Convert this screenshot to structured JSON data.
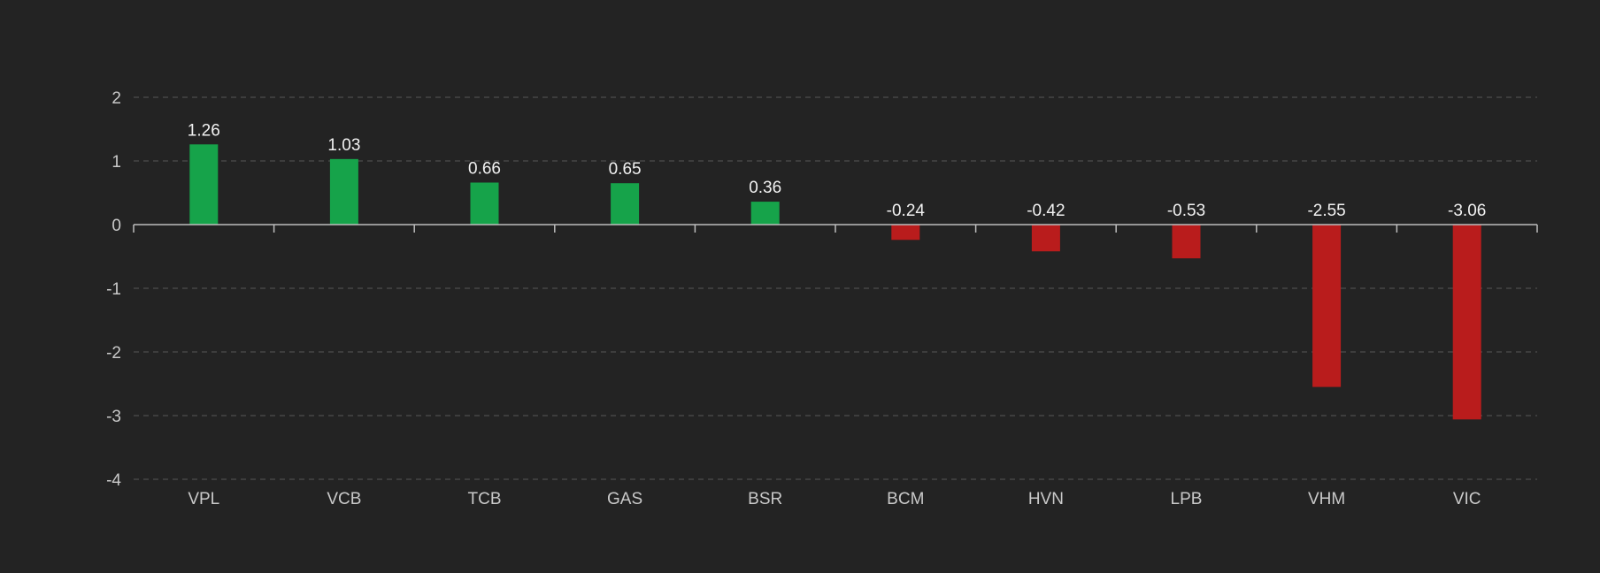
{
  "chart_data": {
    "type": "bar",
    "title": "",
    "xlabel": "",
    "ylabel": "",
    "categories": [
      "VPL",
      "VCB",
      "TCB",
      "GAS",
      "BSR",
      "BCM",
      "HVN",
      "LPB",
      "VHM",
      "VIC"
    ],
    "values": [
      1.26,
      1.03,
      0.66,
      0.65,
      0.36,
      -0.24,
      -0.42,
      -0.53,
      -2.55,
      -3.06
    ],
    "labels": [
      "1.26",
      "1.03",
      "0.66",
      "0.65",
      "0.36",
      "-0.24",
      "-0.42",
      "-0.53",
      "-2.55",
      "-3.06"
    ],
    "ylim": [
      -4,
      2
    ],
    "yticks": [
      2,
      1,
      0,
      -1,
      -2,
      -3,
      -4
    ],
    "grid": true,
    "legend": "none",
    "colors": {
      "positive": "#16a34a",
      "negative": "#b91c1c",
      "background": "#232323"
    }
  }
}
